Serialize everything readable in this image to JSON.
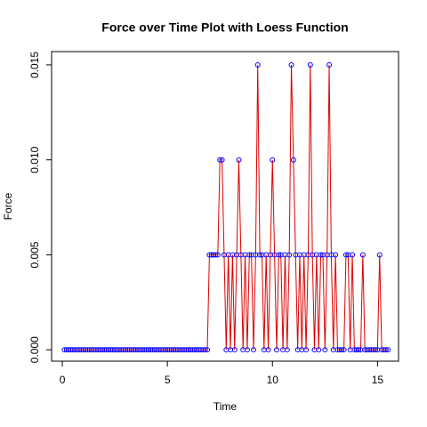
{
  "chart_data": {
    "type": "line",
    "title": "Force over Time Plot with Loess Function",
    "xlabel": "Time",
    "ylabel": "Force",
    "x": [
      0.1,
      0.2,
      0.3,
      0.4,
      0.5,
      0.6,
      0.7,
      0.8,
      0.9,
      1.0,
      1.1,
      1.2,
      1.3,
      1.4,
      1.5,
      1.6,
      1.7,
      1.8,
      1.9,
      2.0,
      2.1,
      2.2,
      2.3,
      2.4,
      2.5,
      2.6,
      2.7,
      2.8,
      2.9,
      3.0,
      3.1,
      3.2,
      3.3,
      3.4,
      3.5,
      3.6,
      3.7,
      3.8,
      3.9,
      4.0,
      4.1,
      4.2,
      4.3,
      4.4,
      4.5,
      4.6,
      4.7,
      4.8,
      4.9,
      5.0,
      5.1,
      5.2,
      5.3,
      5.4,
      5.5,
      5.6,
      5.7,
      5.8,
      5.9,
      6.0,
      6.1,
      6.2,
      6.3,
      6.4,
      6.5,
      6.6,
      6.7,
      6.8,
      6.9,
      7.0,
      7.1,
      7.2,
      7.3,
      7.4,
      7.5,
      7.6,
      7.7,
      7.8,
      7.9,
      8.0,
      8.1,
      8.2,
      8.3,
      8.4,
      8.5,
      8.6,
      8.7,
      8.8,
      8.9,
      9.0,
      9.1,
      9.2,
      9.3,
      9.4,
      9.5,
      9.6,
      9.7,
      9.8,
      9.9,
      10.0,
      10.1,
      10.2,
      10.3,
      10.4,
      10.5,
      10.6,
      10.7,
      10.8,
      10.9,
      11.0,
      11.1,
      11.2,
      11.3,
      11.4,
      11.5,
      11.6,
      11.7,
      11.8,
      11.9,
      12.0,
      12.1,
      12.2,
      12.3,
      12.4,
      12.5,
      12.6,
      12.7,
      12.8,
      12.9,
      13.0,
      13.1,
      13.2,
      13.3,
      13.4,
      13.5,
      13.6,
      13.7,
      13.8,
      13.9,
      14.0,
      14.1,
      14.2,
      14.3,
      14.4,
      14.5,
      14.6,
      14.7,
      14.8,
      14.9,
      15.0,
      15.1,
      15.2,
      15.3,
      15.4,
      15.5
    ],
    "values": [
      0,
      0,
      0,
      0,
      0,
      0,
      0,
      0,
      0,
      0,
      0,
      0,
      0,
      0,
      0,
      0,
      0,
      0,
      0,
      0,
      0,
      0,
      0,
      0,
      0,
      0,
      0,
      0,
      0,
      0,
      0,
      0,
      0,
      0,
      0,
      0,
      0,
      0,
      0,
      0,
      0,
      0,
      0,
      0,
      0,
      0,
      0,
      0,
      0,
      0,
      0,
      0,
      0,
      0,
      0,
      0,
      0,
      0,
      0,
      0,
      0,
      0,
      0,
      0,
      0,
      0,
      0,
      0,
      0,
      0.005,
      0.005,
      0.005,
      0.005,
      0.005,
      0.01,
      0.01,
      0.005,
      0,
      0.005,
      0,
      0.005,
      0,
      0.005,
      0.01,
      0.005,
      0,
      0.005,
      0,
      0.005,
      0.005,
      0,
      0.005,
      0.015,
      0.005,
      0.005,
      0,
      0.005,
      0,
      0.005,
      0.01,
      0.005,
      0,
      0.005,
      0.005,
      0,
      0.005,
      0,
      0.005,
      0.015,
      0.01,
      0.005,
      0,
      0.005,
      0,
      0.005,
      0,
      0.005,
      0.015,
      0.005,
      0,
      0.005,
      0,
      0.005,
      0.005,
      0,
      0.005,
      0.015,
      0.005,
      0,
      0.005,
      0,
      0,
      0,
      0,
      0.005,
      0.005,
      0,
      0.005,
      0,
      0,
      0,
      0,
      0.005,
      0,
      0,
      0,
      0,
      0,
      0,
      0,
      0.005,
      0,
      0,
      0,
      0
    ],
    "line_color": "#dd0000",
    "marker_color": "#0000ff",
    "xlim": [
      -0.51,
      16.0
    ],
    "ylim": [
      -0.0006,
      0.0157
    ],
    "xticks": [
      0,
      5,
      10,
      15
    ],
    "yticks": [
      {
        "value": 0,
        "label": "0.000"
      },
      {
        "value": 0.005,
        "label": "0.005"
      },
      {
        "value": 0.01,
        "label": "0.010"
      },
      {
        "value": 0.015,
        "label": "0.015"
      }
    ]
  }
}
